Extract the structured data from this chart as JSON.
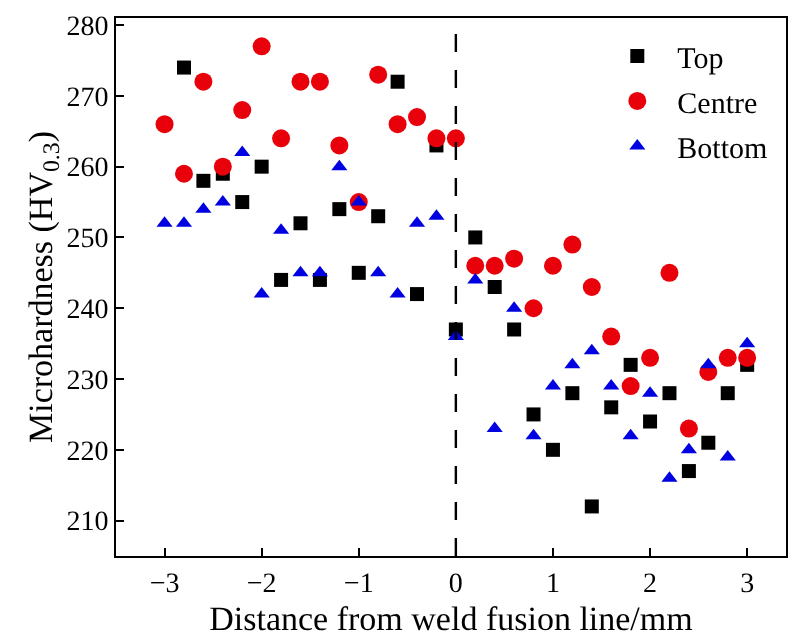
{
  "chart_data": {
    "type": "scatter",
    "xlabel": "Distance from weld fusion line/mm",
    "ylabel": "Microhardness (HV$_{0.3}$)",
    "x": [
      -3.0,
      -2.8,
      -2.6,
      -2.4,
      -2.2,
      -2.0,
      -1.8,
      -1.6,
      -1.4,
      -1.2,
      -1.0,
      -0.8,
      -0.6,
      -0.4,
      -0.2,
      0.0,
      0.2,
      0.4,
      0.6,
      0.8,
      1.0,
      1.2,
      1.4,
      1.6,
      1.8,
      2.0,
      2.2,
      2.4,
      2.6,
      2.8,
      3.0
    ],
    "series": [
      {
        "name": "Top",
        "color": "#000000",
        "marker": "square",
        "x": [
          -2.8,
          -2.6,
          -2.4,
          -2.2,
          -2.0,
          -1.8,
          -1.6,
          -1.4,
          -1.2,
          -1.0,
          -0.8,
          -0.6,
          -0.4,
          -0.2,
          0.0,
          0.2,
          0.4,
          0.6,
          0.8,
          1.0,
          1.2,
          1.4,
          1.6,
          1.8,
          2.0,
          2.2,
          2.4,
          2.6,
          2.8,
          3.0
        ],
        "values": [
          274,
          258,
          259,
          255,
          260,
          244,
          252,
          244,
          254,
          245,
          253,
          272,
          242,
          263,
          237,
          250,
          243,
          237,
          225,
          220,
          228,
          212,
          226,
          232,
          224,
          228,
          217,
          221,
          228,
          232
        ]
      },
      {
        "name": "Centre",
        "color": "#e8000b",
        "marker": "circle",
        "values": [
          266,
          259,
          272,
          260,
          268,
          277,
          264,
          272,
          272,
          263,
          255,
          273,
          266,
          267,
          264,
          264,
          246,
          246,
          247,
          240,
          246,
          249,
          243,
          236,
          229,
          233,
          245,
          223,
          231,
          233,
          233
        ]
      },
      {
        "name": "Bottom",
        "color": "#0000e0",
        "marker": "triangle",
        "values": [
          252,
          252,
          254,
          255,
          262,
          242,
          251,
          245,
          245,
          260,
          255,
          245,
          242,
          252,
          253,
          236,
          244,
          223,
          240,
          222,
          229,
          232,
          234,
          229,
          222,
          228,
          216,
          220,
          232,
          219,
          235
        ]
      }
    ],
    "xlim": [
      -3.5,
      3.4
    ],
    "xticks": [
      -3,
      -2,
      -1,
      0,
      1,
      2,
      3
    ],
    "ylim": [
      205,
      281
    ],
    "yticks": [
      210,
      220,
      230,
      240,
      250,
      260,
      270,
      280
    ],
    "ref_lines": [
      {
        "axis": "x",
        "value": 0,
        "color": "#000000",
        "line_style": "dashed"
      }
    ],
    "legend": "top right"
  }
}
